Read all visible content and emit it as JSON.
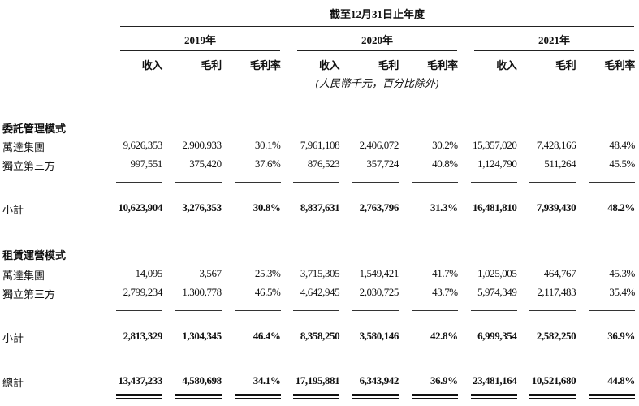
{
  "header": {
    "title": "截至12月31日止年度",
    "years": [
      "2019年",
      "2020年",
      "2021年"
    ],
    "columns": [
      "收入",
      "毛利",
      "毛利率",
      "收入",
      "毛利",
      "毛利率",
      "收入",
      "毛利",
      "毛利率"
    ],
    "unit_note": "(人民幣千元，百分比除外)"
  },
  "sections": [
    {
      "title": "委託管理模式",
      "rows": [
        {
          "label": "萬達集團",
          "values": [
            "9,626,353",
            "2,900,933",
            "30.1%",
            "7,961,108",
            "2,406,072",
            "30.2%",
            "15,357,020",
            "7,428,166",
            "48.4%"
          ]
        },
        {
          "label": "獨立第三方",
          "values": [
            "997,551",
            "375,420",
            "37.6%",
            "876,523",
            "357,724",
            "40.8%",
            "1,124,790",
            "511,264",
            "45.5%"
          ]
        }
      ],
      "subtotal": {
        "label": "小計",
        "values": [
          "10,623,904",
          "3,276,353",
          "30.8%",
          "8,837,631",
          "2,763,796",
          "31.3%",
          "16,481,810",
          "7,939,430",
          "48.2%"
        ]
      }
    },
    {
      "title": "租賃運營模式",
      "rows": [
        {
          "label": "萬達集團",
          "values": [
            "14,095",
            "3,567",
            "25.3%",
            "3,715,305",
            "1,549,421",
            "41.7%",
            "1,025,005",
            "464,767",
            "45.3%"
          ]
        },
        {
          "label": "獨立第三方",
          "values": [
            "2,799,234",
            "1,300,778",
            "46.5%",
            "4,642,945",
            "2,030,725",
            "43.7%",
            "5,974,349",
            "2,117,483",
            "35.4%"
          ]
        }
      ],
      "subtotal": {
        "label": "小計",
        "values": [
          "2,813,329",
          "1,304,345",
          "46.4%",
          "8,358,250",
          "3,580,146",
          "42.8%",
          "6,999,354",
          "2,582,250",
          "36.9%"
        ]
      }
    }
  ],
  "total": {
    "label": "總計",
    "values": [
      "13,437,233",
      "4,580,698",
      "34.1%",
      "17,195,881",
      "6,343,942",
      "36.9%",
      "23,481,164",
      "10,521,680",
      "44.8%"
    ]
  }
}
